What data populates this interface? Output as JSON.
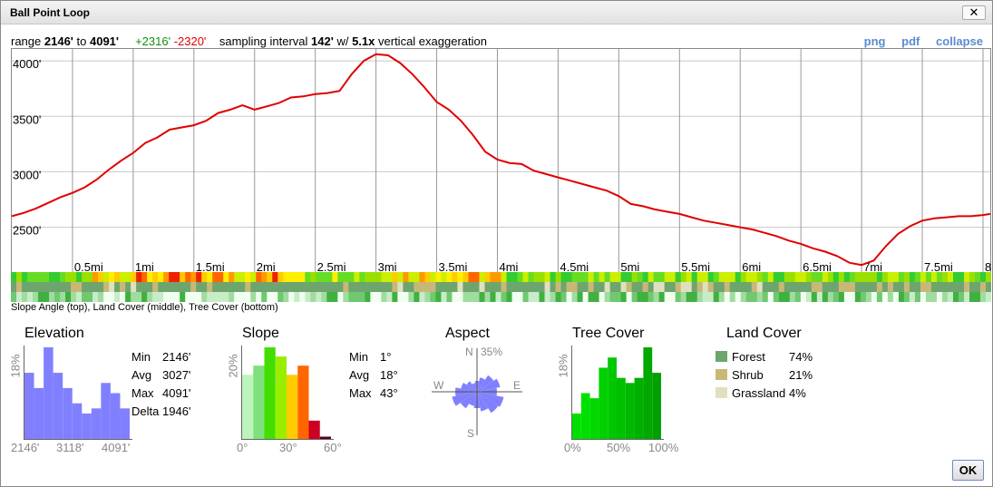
{
  "window": {
    "title": "Ball Point Loop",
    "close_label": "✕"
  },
  "stats": {
    "range_label": "range",
    "range_min": "2146'",
    "to_label": "to",
    "range_max": "4091'",
    "gain": "+2316'",
    "loss": "-2320'",
    "interval_label": "sampling interval",
    "interval_value": "142'",
    "with_label": "w/",
    "exaggeration_value": "5.1x",
    "exaggeration_label": "vertical exaggeration"
  },
  "links": {
    "png": "png",
    "pdf": "pdf",
    "collapse": "collapse"
  },
  "profile": {
    "elevation_labels": [
      "4000'",
      "3500'",
      "3000'",
      "2500'"
    ],
    "distance_labels": [
      "0.5mi",
      "1mi",
      "1.5mi",
      "2mi",
      "2.5mi",
      "3mi",
      "3.5mi",
      "4mi",
      "4.5mi",
      "5mi",
      "5.5mi",
      "6mi",
      "6.5mi",
      "7mi",
      "7.5mi",
      "8"
    ],
    "line_color": "#e00000",
    "elev_min": 2146,
    "elev_max": 4091,
    "points": [
      [
        0,
        2600
      ],
      [
        0.1,
        2630
      ],
      [
        0.2,
        2670
      ],
      [
        0.3,
        2720
      ],
      [
        0.4,
        2770
      ],
      [
        0.5,
        2810
      ],
      [
        0.6,
        2860
      ],
      [
        0.7,
        2930
      ],
      [
        0.8,
        3020
      ],
      [
        0.9,
        3100
      ],
      [
        1.0,
        3170
      ],
      [
        1.1,
        3260
      ],
      [
        1.2,
        3310
      ],
      [
        1.3,
        3380
      ],
      [
        1.4,
        3400
      ],
      [
        1.5,
        3420
      ],
      [
        1.6,
        3460
      ],
      [
        1.7,
        3530
      ],
      [
        1.8,
        3560
      ],
      [
        1.9,
        3600
      ],
      [
        2.0,
        3560
      ],
      [
        2.1,
        3590
      ],
      [
        2.2,
        3620
      ],
      [
        2.3,
        3670
      ],
      [
        2.4,
        3680
      ],
      [
        2.5,
        3700
      ],
      [
        2.6,
        3710
      ],
      [
        2.7,
        3730
      ],
      [
        2.8,
        3880
      ],
      [
        2.9,
        4000
      ],
      [
        3.0,
        4060
      ],
      [
        3.1,
        4050
      ],
      [
        3.2,
        3980
      ],
      [
        3.3,
        3880
      ],
      [
        3.4,
        3760
      ],
      [
        3.5,
        3630
      ],
      [
        3.6,
        3560
      ],
      [
        3.7,
        3460
      ],
      [
        3.8,
        3330
      ],
      [
        3.9,
        3180
      ],
      [
        4.0,
        3110
      ],
      [
        4.1,
        3080
      ],
      [
        4.2,
        3070
      ],
      [
        4.3,
        3010
      ],
      [
        4.4,
        2980
      ],
      [
        4.5,
        2950
      ],
      [
        4.6,
        2920
      ],
      [
        4.7,
        2890
      ],
      [
        4.8,
        2860
      ],
      [
        4.9,
        2830
      ],
      [
        5.0,
        2780
      ],
      [
        5.1,
        2710
      ],
      [
        5.2,
        2690
      ],
      [
        5.3,
        2660
      ],
      [
        5.4,
        2640
      ],
      [
        5.5,
        2620
      ],
      [
        5.6,
        2590
      ],
      [
        5.7,
        2560
      ],
      [
        5.8,
        2540
      ],
      [
        5.9,
        2520
      ],
      [
        6.0,
        2500
      ],
      [
        6.1,
        2480
      ],
      [
        6.2,
        2450
      ],
      [
        6.3,
        2420
      ],
      [
        6.4,
        2380
      ],
      [
        6.5,
        2350
      ],
      [
        6.6,
        2310
      ],
      [
        6.7,
        2280
      ],
      [
        6.8,
        2240
      ],
      [
        6.9,
        2180
      ],
      [
        7.0,
        2160
      ],
      [
        7.1,
        2200
      ],
      [
        7.2,
        2330
      ],
      [
        7.3,
        2440
      ],
      [
        7.4,
        2510
      ],
      [
        7.5,
        2560
      ],
      [
        7.6,
        2580
      ],
      [
        7.7,
        2590
      ],
      [
        7.8,
        2600
      ],
      [
        7.9,
        2600
      ],
      [
        8.0,
        2610
      ],
      [
        8.06,
        2620
      ]
    ]
  },
  "strips": {
    "caption": "Slope Angle (top), Land Cover (middle), Tree Cover (bottom)",
    "slope_colors": [
      "#33cc33",
      "#66dd22",
      "#99e000",
      "#ccee00",
      "#ffee00",
      "#ffcc00",
      "#ff9900",
      "#ff6600",
      "#ee2200",
      "#cc0033"
    ],
    "landcover_colors": [
      "#6ea56e",
      "#c8b878",
      "#e0e0c0"
    ],
    "treecover_colors": [
      "#f0fff0",
      "#c8ecc8",
      "#a0dca0",
      "#70c870",
      "#40b040"
    ]
  },
  "elevation_panel": {
    "title": "Elevation",
    "y_label": "18%",
    "x_labels": [
      "2146'",
      "3118'",
      "4091'"
    ],
    "bars": [
      13,
      10,
      18,
      13,
      10,
      7,
      5,
      6,
      11,
      9,
      6
    ],
    "bar_color": "#8080ff",
    "stats": [
      {
        "label": "Min",
        "value": "2146'"
      },
      {
        "label": "Avg",
        "value": "3027'"
      },
      {
        "label": "Max",
        "value": "4091'"
      },
      {
        "label": "Delta",
        "value": "1946'"
      }
    ]
  },
  "slope_panel": {
    "title": "Slope",
    "y_label": "20%",
    "x_labels": [
      "0°",
      "30°",
      "60°"
    ],
    "bars": [
      14,
      16,
      20,
      18,
      14,
      16,
      4,
      0.5
    ],
    "bar_colors": [
      "#bbf5bb",
      "#7ee07e",
      "#44dd00",
      "#99ee00",
      "#ffcc00",
      "#ff6600",
      "#cc0022",
      "#550022"
    ],
    "stats": [
      {
        "label": "Min",
        "value": "1°"
      },
      {
        "label": "Avg",
        "value": "18°"
      },
      {
        "label": "Max",
        "value": "43°"
      }
    ]
  },
  "aspect_panel": {
    "title": "Aspect",
    "north_label": "N",
    "scale_label": "35%",
    "west_label": "W",
    "east_label": "E",
    "south_label": "S",
    "color": "#8080ff"
  },
  "tree_panel": {
    "title": "Tree Cover",
    "y_label": "18%",
    "x_labels": [
      "0%",
      "50%",
      "100%"
    ],
    "bars": [
      5,
      9,
      8,
      14,
      16,
      12,
      11,
      12,
      18,
      13
    ],
    "bar_colors": [
      "#00e000",
      "#00e000",
      "#00d800",
      "#00d000",
      "#00c800",
      "#00c000",
      "#00b800",
      "#00b000",
      "#00a800",
      "#00a000"
    ]
  },
  "landcover_panel": {
    "title": "Land Cover",
    "items": [
      {
        "label": "Forest",
        "value": "74%",
        "color": "#6ea56e"
      },
      {
        "label": "Shrub",
        "value": "21%",
        "color": "#c8b878"
      },
      {
        "label": "Grassland",
        "value": "4%",
        "color": "#e0e0c0"
      }
    ]
  },
  "ok_label": "OK"
}
